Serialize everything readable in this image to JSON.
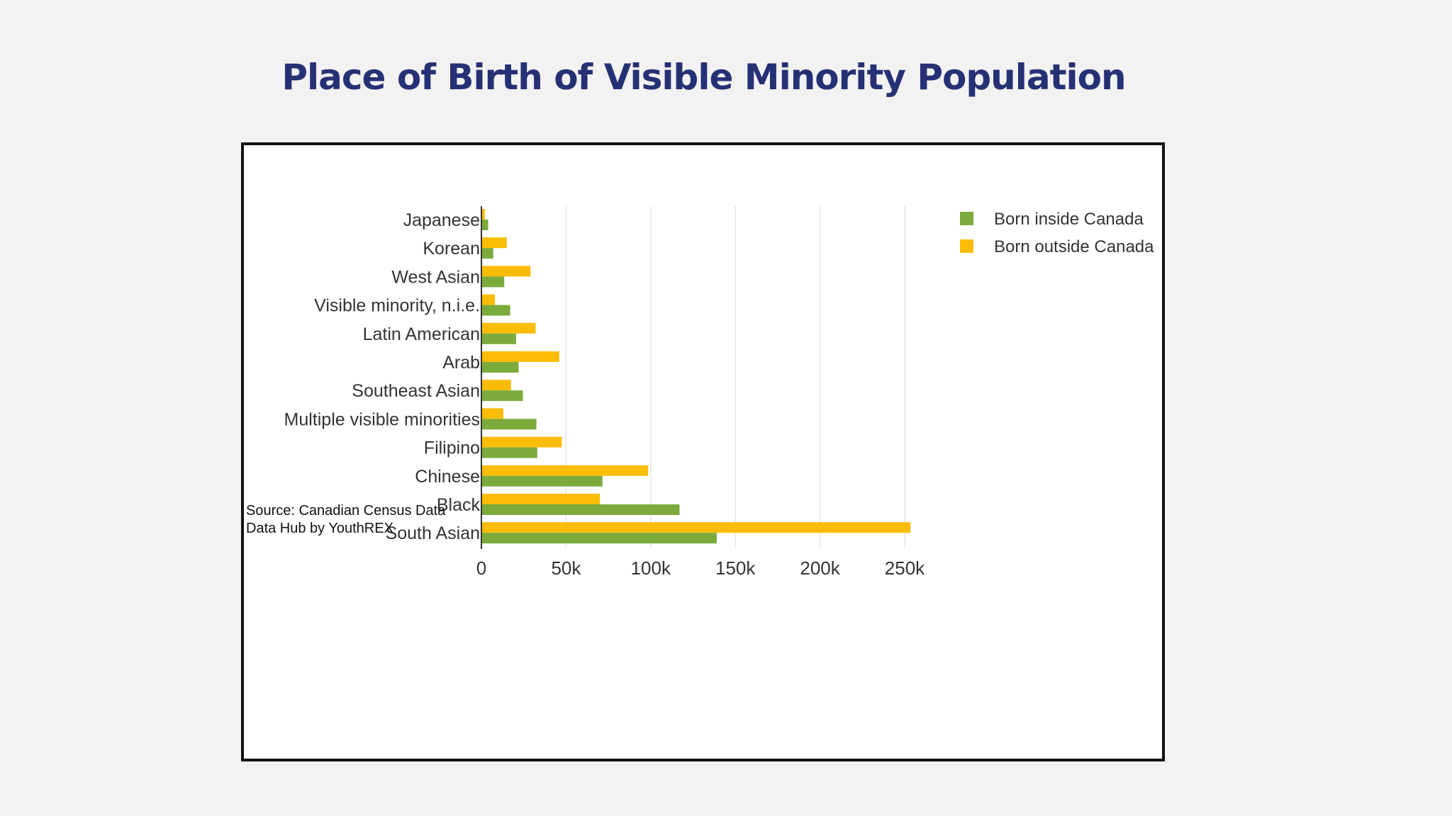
{
  "title": "Place of Birth of Visible Minority Population",
  "source_lines": [
    "Source: Canadian Census Data",
    "Data Hub by YouthREX"
  ],
  "colors": {
    "born_inside": "#7bab3c",
    "born_outside": "#fbbc05",
    "title": "#263074"
  },
  "chart_data": {
    "type": "bar",
    "orientation": "horizontal",
    "title": "Place of Birth of Visible Minority Population",
    "categories": [
      "Japanese",
      "Korean",
      "West Asian",
      "Visible minority, n.i.e.",
      "Latin American",
      "Arab",
      "Southeast Asian",
      "Multiple visible minorities",
      "Filipino",
      "Chinese",
      "Black",
      "South Asian"
    ],
    "series": [
      {
        "name": "Born inside Canada",
        "color": "#7bab3c",
        "values": [
          4000,
          7000,
          13500,
          17000,
          20500,
          22000,
          24500,
          32500,
          33000,
          71500,
          117000,
          139000
        ]
      },
      {
        "name": "Born outside Canada",
        "color": "#fbbc05",
        "values": [
          2000,
          15000,
          29000,
          8000,
          32000,
          46000,
          17500,
          13000,
          47500,
          98500,
          70000,
          253500
        ]
      }
    ],
    "xlim": [
      0,
      250000
    ],
    "xticks": [
      0,
      50000,
      100000,
      150000,
      200000,
      250000
    ],
    "xtick_labels": [
      "0",
      "50k",
      "100k",
      "150k",
      "200k",
      "250k"
    ],
    "xlabel": "",
    "ylabel": "",
    "grid": "vertical",
    "legend_position": "top-right"
  }
}
